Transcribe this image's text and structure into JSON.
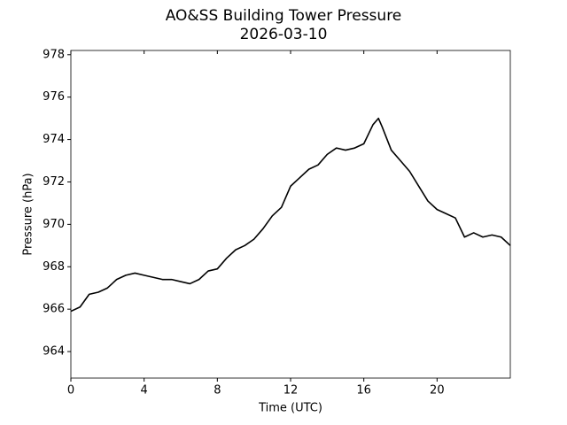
{
  "chart_data": {
    "type": "line",
    "title": "AO&SS Building Tower Pressure",
    "subtitle": "2026-03-10",
    "x_label": "Time (UTC)",
    "y_label": "Pressure (hPa)",
    "x": [
      0,
      0.5,
      1,
      1.5,
      2,
      2.5,
      3,
      3.5,
      4,
      4.5,
      5,
      5.5,
      6,
      6.5,
      7,
      7.5,
      8,
      8.5,
      9,
      9.5,
      10,
      10.5,
      11,
      11.5,
      12,
      12.5,
      13,
      13.5,
      14,
      14.5,
      15,
      15.5,
      16,
      16.5,
      16.8,
      17,
      17.5,
      18,
      18.5,
      19,
      19.5,
      20,
      20.5,
      21,
      21.5,
      22,
      22.5,
      23,
      23.5,
      24
    ],
    "series": [
      {
        "name": "Pressure",
        "color": "#000000",
        "values": [
          965.9,
          966.1,
          966.7,
          966.8,
          967.0,
          967.4,
          967.6,
          967.7,
          967.6,
          967.5,
          967.4,
          967.4,
          967.3,
          967.2,
          967.4,
          967.8,
          967.9,
          968.4,
          968.8,
          969.0,
          969.3,
          969.8,
          970.4,
          970.8,
          971.8,
          972.2,
          972.6,
          972.8,
          973.3,
          973.6,
          973.5,
          973.6,
          973.8,
          974.7,
          975.0,
          974.6,
          973.5,
          973.0,
          972.5,
          971.8,
          971.1,
          970.7,
          970.5,
          970.3,
          969.4,
          969.6,
          969.4,
          969.5,
          969.4,
          969.0
        ]
      }
    ],
    "xlim": [
      0,
      24
    ],
    "xticks": [
      0,
      4,
      8,
      12,
      16,
      20
    ],
    "ylim": [
      962.75,
      978.2
    ],
    "yticks": [
      964,
      966,
      968,
      970,
      972,
      974,
      976,
      978
    ],
    "grid": false
  }
}
